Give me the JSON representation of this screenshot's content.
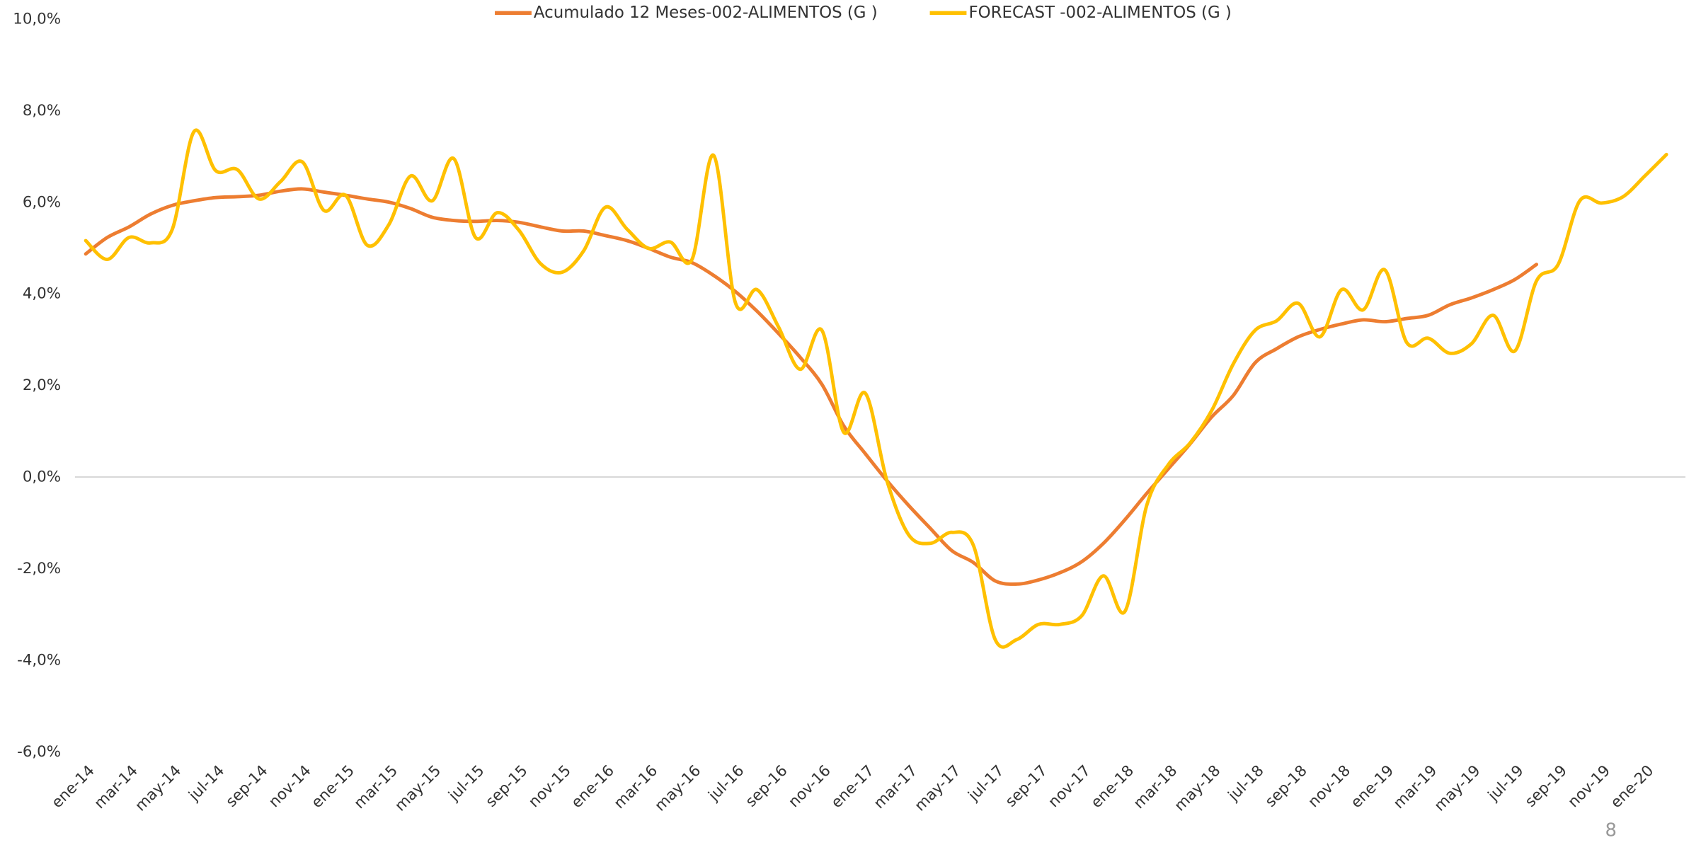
{
  "chart_data": {
    "type": "line",
    "categories": [
      "ene-14",
      null,
      "mar-14",
      null,
      "may-14",
      null,
      "jul-14",
      null,
      "sep-14",
      null,
      "nov-14",
      null,
      "ene-15",
      null,
      "mar-15",
      null,
      "may-15",
      null,
      "jul-15",
      null,
      "sep-15",
      null,
      "nov-15",
      null,
      "ene-16",
      null,
      "mar-16",
      null,
      "may-16",
      null,
      "jul-16",
      null,
      "sep-16",
      null,
      "nov-16",
      null,
      "ene-17",
      null,
      "mar-17",
      null,
      "may-17",
      null,
      "jul-17",
      null,
      "sep-17",
      null,
      "nov-17",
      null,
      "ene-18",
      null,
      "mar-18",
      null,
      "may-18",
      null,
      "jul-18",
      null,
      "sep-18",
      null,
      "nov-18",
      null,
      "ene-19",
      null,
      "mar-19",
      null,
      "may-19",
      null,
      "jul-19",
      null,
      "sep-19",
      null,
      "nov-19",
      null,
      "ene-20",
      null
    ],
    "series": [
      {
        "name": "Acumulado 12 Meses-002-ALIMENTOS (G )",
        "color": "#ed7d31",
        "values": [
          4.88,
          5.24,
          5.47,
          5.75,
          5.94,
          6.04,
          6.11,
          6.13,
          6.16,
          6.25,
          6.3,
          6.23,
          6.16,
          6.08,
          6.01,
          5.87,
          5.68,
          5.61,
          5.59,
          5.61,
          5.57,
          5.47,
          5.38,
          5.38,
          5.28,
          5.17,
          5.0,
          4.81,
          4.69,
          4.41,
          4.06,
          3.63,
          3.14,
          2.62,
          2.03,
          1.13,
          0.52,
          -0.07,
          -0.61,
          -1.11,
          -1.6,
          -1.86,
          -2.26,
          -2.33,
          -2.24,
          -2.08,
          -1.84,
          -1.44,
          -0.92,
          -0.35,
          0.19,
          0.73,
          1.32,
          1.79,
          2.5,
          2.81,
          3.07,
          3.23,
          3.35,
          3.44,
          3.4,
          3.47,
          3.54,
          3.77,
          3.92,
          4.1,
          4.32,
          4.65,
          null,
          null,
          null,
          null,
          null,
          null
        ]
      },
      {
        "name": "FORECAST -002-ALIMENTOS (G )",
        "color": "#ffc000",
        "values": [
          5.17,
          4.76,
          5.24,
          5.12,
          5.42,
          7.55,
          6.7,
          6.72,
          6.08,
          6.46,
          6.89,
          5.83,
          6.16,
          5.07,
          5.52,
          6.58,
          6.04,
          6.96,
          5.24,
          5.78,
          5.4,
          4.67,
          4.48,
          4.95,
          5.9,
          5.42,
          5.0,
          5.14,
          4.76,
          7.03,
          3.82,
          4.1,
          3.28,
          2.36,
          3.21,
          0.99,
          1.84,
          -0.07,
          -1.25,
          -1.44,
          -1.2,
          -1.49,
          -3.54,
          -3.54,
          -3.21,
          -3.21,
          -3.02,
          -2.15,
          -2.92,
          -0.61,
          0.28,
          0.75,
          1.46,
          2.48,
          3.21,
          3.42,
          3.8,
          3.07,
          4.1,
          3.66,
          4.53,
          2.95,
          3.04,
          2.71,
          2.92,
          3.54,
          2.76,
          4.29,
          4.65,
          6.04,
          5.99,
          6.13,
          6.58,
          7.05
        ]
      }
    ],
    "ylim": [
      -6,
      10
    ],
    "yticks": [
      {
        "value": -6,
        "label": "-6,0%"
      },
      {
        "value": -4,
        "label": "-4,0%"
      },
      {
        "value": -2,
        "label": "-2,0%"
      },
      {
        "value": 0,
        "label": "0,0%"
      },
      {
        "value": 2,
        "label": "2,0%"
      },
      {
        "value": 4,
        "label": "4,0%"
      },
      {
        "value": 6,
        "label": "6,0%"
      },
      {
        "value": 8,
        "label": "8,0%"
      },
      {
        "value": 10,
        "label": "10,0%"
      }
    ],
    "grid": false,
    "legend": "top"
  },
  "page_number": "8"
}
